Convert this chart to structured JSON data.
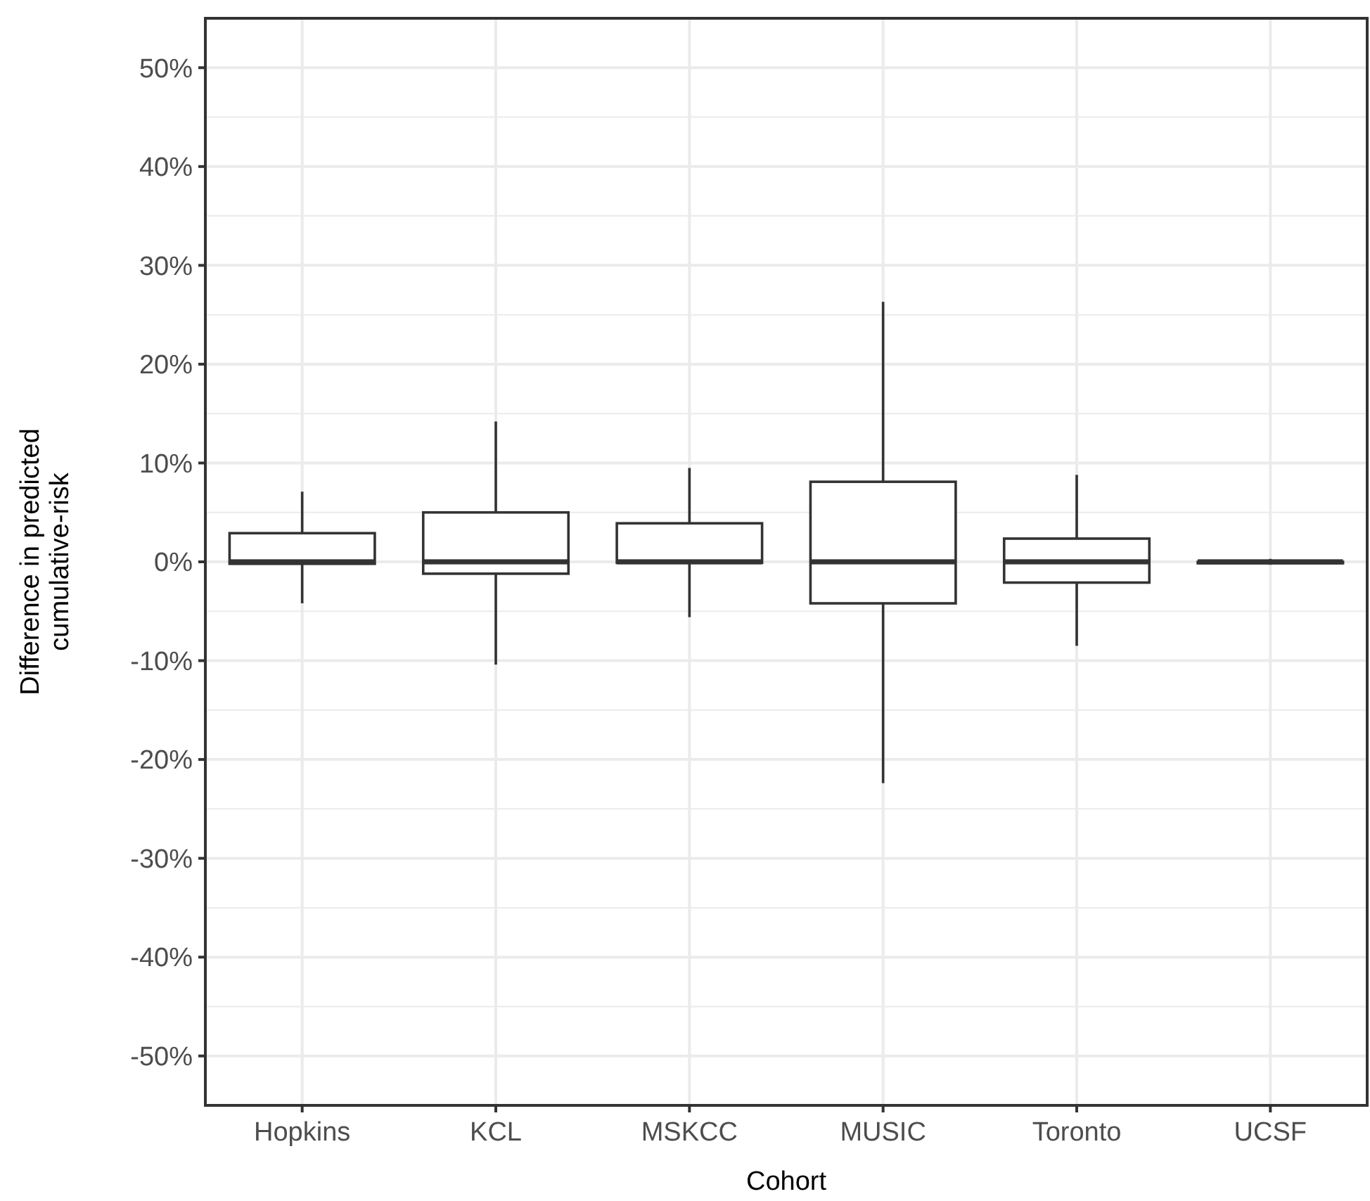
{
  "chart_data": {
    "type": "box",
    "xlabel": "Cohort",
    "ylabel": "Difference in predicted\ncumulative-risk",
    "categories": [
      "Hopkins",
      "KCL",
      "MSKCC",
      "MUSIC",
      "Toronto",
      "UCSF"
    ],
    "boxes": [
      {
        "low": -4.2,
        "q1": -0.2,
        "median": 0,
        "q3": 2.9,
        "high": 7.1
      },
      {
        "low": -10.4,
        "q1": -1.2,
        "median": 0,
        "q3": 5.0,
        "high": 14.2
      },
      {
        "low": -5.6,
        "q1": -0.1,
        "median": 0,
        "q3": 3.9,
        "high": 9.5
      },
      {
        "low": -22.4,
        "q1": -4.2,
        "median": 0,
        "q3": 8.1,
        "high": 26.3
      },
      {
        "low": -8.5,
        "q1": -2.1,
        "median": 0,
        "q3": 2.35,
        "high": 8.8
      },
      {
        "low": -0.3,
        "q1": 0,
        "median": 0,
        "q3": 0,
        "high": 0.3
      }
    ],
    "ylim": [
      -55,
      55
    ],
    "yticks": [
      {
        "value": -50,
        "label": "-50%"
      },
      {
        "value": -40,
        "label": "-40%"
      },
      {
        "value": -30,
        "label": "-30%"
      },
      {
        "value": -20,
        "label": "-20%"
      },
      {
        "value": -10,
        "label": "-10%"
      },
      {
        "value": 0,
        "label": "0%"
      },
      {
        "value": 10,
        "label": "10%"
      },
      {
        "value": 20,
        "label": "20%"
      },
      {
        "value": 30,
        "label": "30%"
      },
      {
        "value": 40,
        "label": "40%"
      },
      {
        "value": 50,
        "label": "50%"
      }
    ],
    "grid": true
  }
}
